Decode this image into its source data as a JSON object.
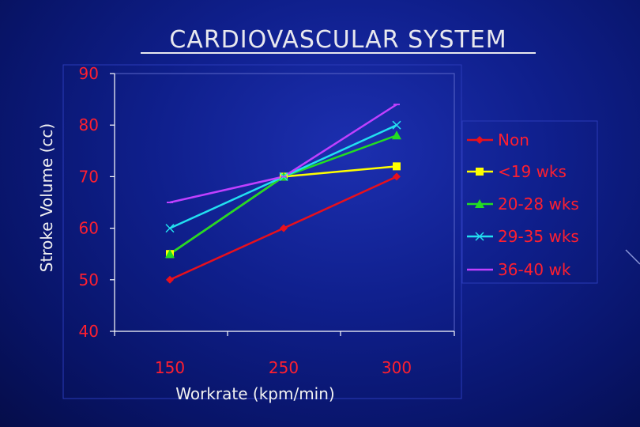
{
  "chart_data": {
    "type": "line",
    "title": "CARDIOVASCULAR SYSTEM",
    "xlabel": "Workrate (kpm/min)",
    "ylabel": "Stroke Volume (cc)",
    "categories": [
      "150",
      "250",
      "300"
    ],
    "ylim": [
      40,
      90
    ],
    "yticks": [
      40,
      50,
      60,
      70,
      80,
      90
    ],
    "grid": false,
    "legend_position": "right",
    "series": [
      {
        "name": "Non",
        "values": [
          50,
          60,
          70
        ],
        "color": "#e8101c",
        "marker": "diamond"
      },
      {
        "name": "<19 wks",
        "values": [
          55,
          70,
          72
        ],
        "color": "#ffff00",
        "marker": "square"
      },
      {
        "name": "20-28 wks",
        "values": [
          55,
          70,
          78
        ],
        "color": "#22dd22",
        "marker": "triangle"
      },
      {
        "name": "29-35 wks",
        "values": [
          60,
          70,
          80
        ],
        "color": "#22e0f0",
        "marker": "x"
      },
      {
        "name": "36-40 wk",
        "values": [
          65,
          70,
          84
        ],
        "color": "#c040ff",
        "marker": "dash"
      }
    ]
  }
}
